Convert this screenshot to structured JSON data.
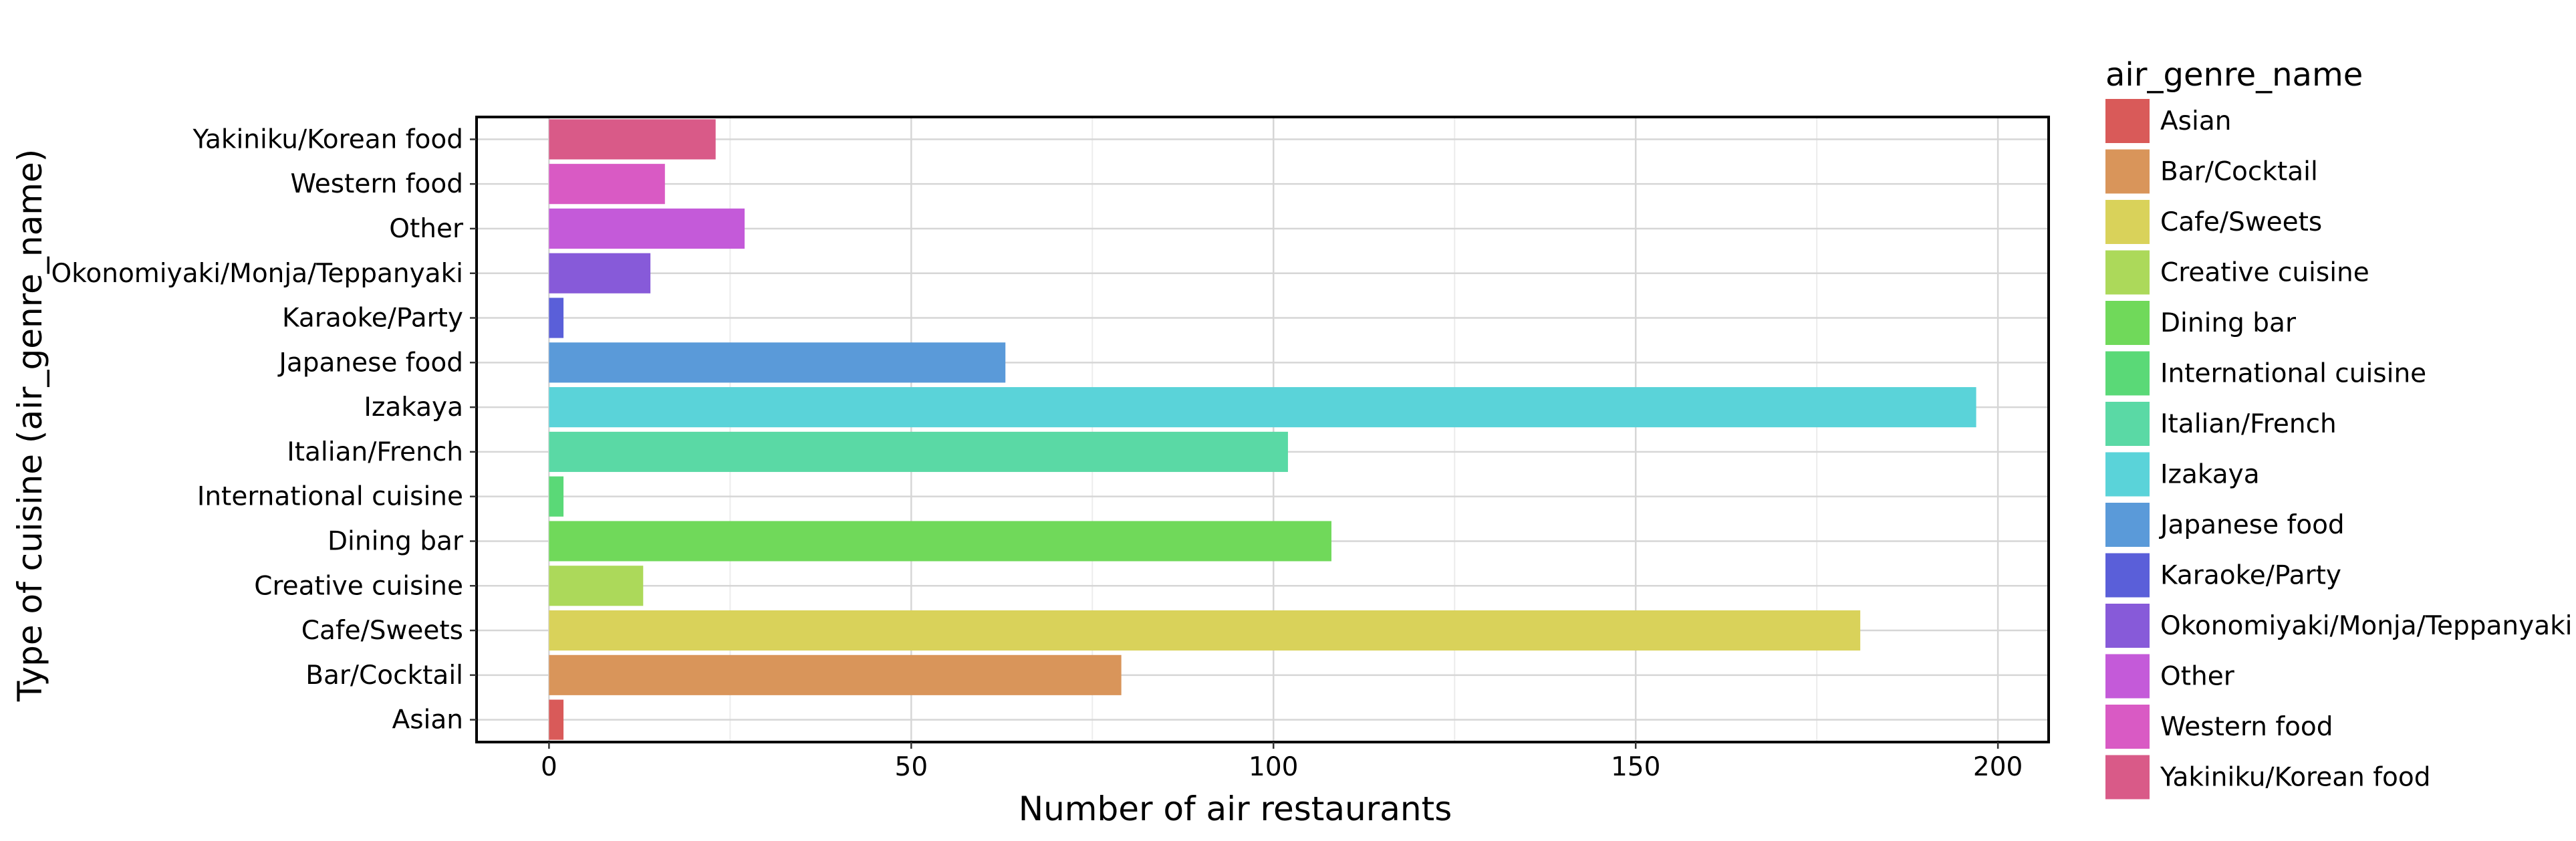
{
  "chart_data": {
    "type": "bar",
    "orientation": "horizontal",
    "xlabel": "Number of air restaurants",
    "ylabel": "Type of cuisine (air_genre_name)",
    "xlim": [
      -10,
      207
    ],
    "x_ticks": [
      0,
      50,
      100,
      150,
      200
    ],
    "grid": true,
    "legend_placement": "right",
    "legend_title": "air_genre_name",
    "categories": [
      "Asian",
      "Bar/Cocktail",
      "Cafe/Sweets",
      "Creative cuisine",
      "Dining bar",
      "International cuisine",
      "Italian/French",
      "Izakaya",
      "Japanese food",
      "Karaoke/Party",
      "Okonomiyaki/Monja/Teppanyaki",
      "Other",
      "Western food",
      "Yakiniku/Korean food"
    ],
    "values": [
      2,
      79,
      181,
      13,
      108,
      2,
      102,
      197,
      63,
      2,
      14,
      27,
      16,
      23
    ],
    "colors": [
      "#D95A59",
      "#D9955A",
      "#D9D25A",
      "#ACD95A",
      "#70D95A",
      "#5AD977",
      "#5AD9A5",
      "#5AD3D9",
      "#5A9AD9",
      "#5A5FD9",
      "#875AD9",
      "#C45AD9",
      "#D95AC4",
      "#D95A88"
    ]
  }
}
